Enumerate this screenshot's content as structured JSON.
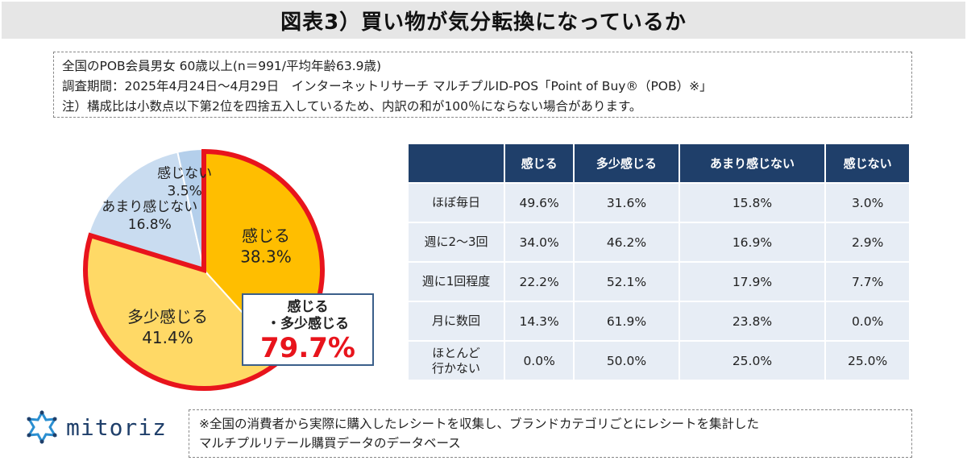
{
  "title": "図表3）買い物が気分転換になっているか",
  "notes": [
    "全国のPOB会員男女 60歳以上(n＝991/平均年齢63.9歳)",
    "調査期間：2025年4月24日～4月29日　インターネットリサーチ マルチプルID-POS「Point of Buy®（POB）※」",
    "注）構成比は小数点以下第2位を四捨五入しているため、内訳の和が100％にならない場合があります。"
  ],
  "callout": {
    "line1": "感じる",
    "line2": "・多少感じる",
    "value": "79.7%"
  },
  "logo": {
    "text": "mitoriz",
    "icon": "mitoriz-star-icon"
  },
  "footnote": [
    "※全国の消費者から実際に購入したレシートを収集し、ブランドカテゴリごとにレシートを集計した",
    "マルチプルリテール購買データのデータベース"
  ],
  "colors": {
    "kanjiru": "#ffbe00",
    "tashou": "#ffd966",
    "amari": "#c9dcf0",
    "kanjinai": "#b4cfeb",
    "highlight_border": "#e8141c",
    "table_header": "#1f3f6a",
    "table_cell": "#e7edf5"
  },
  "chart_data": [
    {
      "type": "pie",
      "series": [
        {
          "name": "感じる",
          "value": 38.3,
          "label": "38.3%"
        },
        {
          "name": "多少感じる",
          "value": 41.4,
          "label": "41.4%"
        },
        {
          "name": "あまり感じない",
          "value": 16.8,
          "label": "16.8%"
        },
        {
          "name": "感じない",
          "value": 3.5,
          "label": "3.5%"
        }
      ],
      "start": "12 o'clock, clockwise"
    },
    {
      "type": "table",
      "columns": [
        "感じる",
        "多少感じる",
        "あまり感じない",
        "感じない"
      ],
      "rows": [
        {
          "label": [
            "ほぼ毎日"
          ],
          "values": [
            "49.6%",
            "31.6%",
            "15.8%",
            "3.0%"
          ]
        },
        {
          "label": [
            "週に2～3回"
          ],
          "values": [
            "34.0%",
            "46.2%",
            "16.9%",
            "2.9%"
          ]
        },
        {
          "label": [
            "週に1回程度"
          ],
          "values": [
            "22.2%",
            "52.1%",
            "17.9%",
            "7.7%"
          ]
        },
        {
          "label": [
            "月に数回"
          ],
          "values": [
            "14.3%",
            "61.9%",
            "23.8%",
            "0.0%"
          ]
        },
        {
          "label": [
            "ほとんど",
            "行かない"
          ],
          "values": [
            "0.0%",
            "50.0%",
            "25.0%",
            "25.0%"
          ]
        }
      ]
    }
  ]
}
